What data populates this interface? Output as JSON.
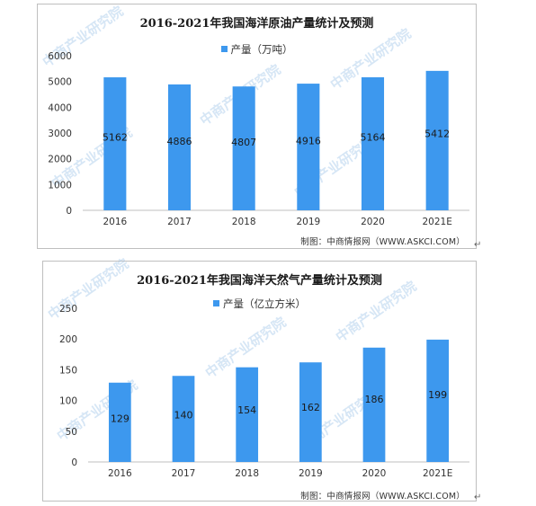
{
  "chart_data": [
    {
      "type": "bar",
      "title": "2016-2021年我国海洋原油产量统计及预测",
      "categories": [
        "2016",
        "2017",
        "2018",
        "2019",
        "2020",
        "2021E"
      ],
      "series": [
        {
          "name": "产量（万吨）",
          "values": [
            5162,
            4886,
            4807,
            4916,
            5164,
            5412
          ]
        }
      ],
      "yticks": [
        "0",
        "1000",
        "2000",
        "3000",
        "4000",
        "5000",
        "6000"
      ],
      "ylim": [
        0,
        6000
      ],
      "grid": false,
      "legend": "top-center",
      "color": "#3d98ee",
      "source": "制图：中商情报网（WWW.ASKCI.COM）"
    },
    {
      "type": "bar",
      "title": "2016-2021年我国海洋天然气产量统计及预测",
      "categories": [
        "2016",
        "2017",
        "2018",
        "2019",
        "2020",
        "2021E"
      ],
      "series": [
        {
          "name": "产量（亿立方米）",
          "values": [
            129,
            140,
            154,
            162,
            186,
            199
          ]
        }
      ],
      "yticks": [
        "0",
        "50",
        "100",
        "150",
        "200",
        "250"
      ],
      "ylim": [
        0,
        250
      ],
      "grid": false,
      "legend": "top-center",
      "color": "#3d98ee",
      "source": "制图：中商情报网（WWW.ASKCI.COM）"
    }
  ],
  "watermark": "中商产业研究院"
}
